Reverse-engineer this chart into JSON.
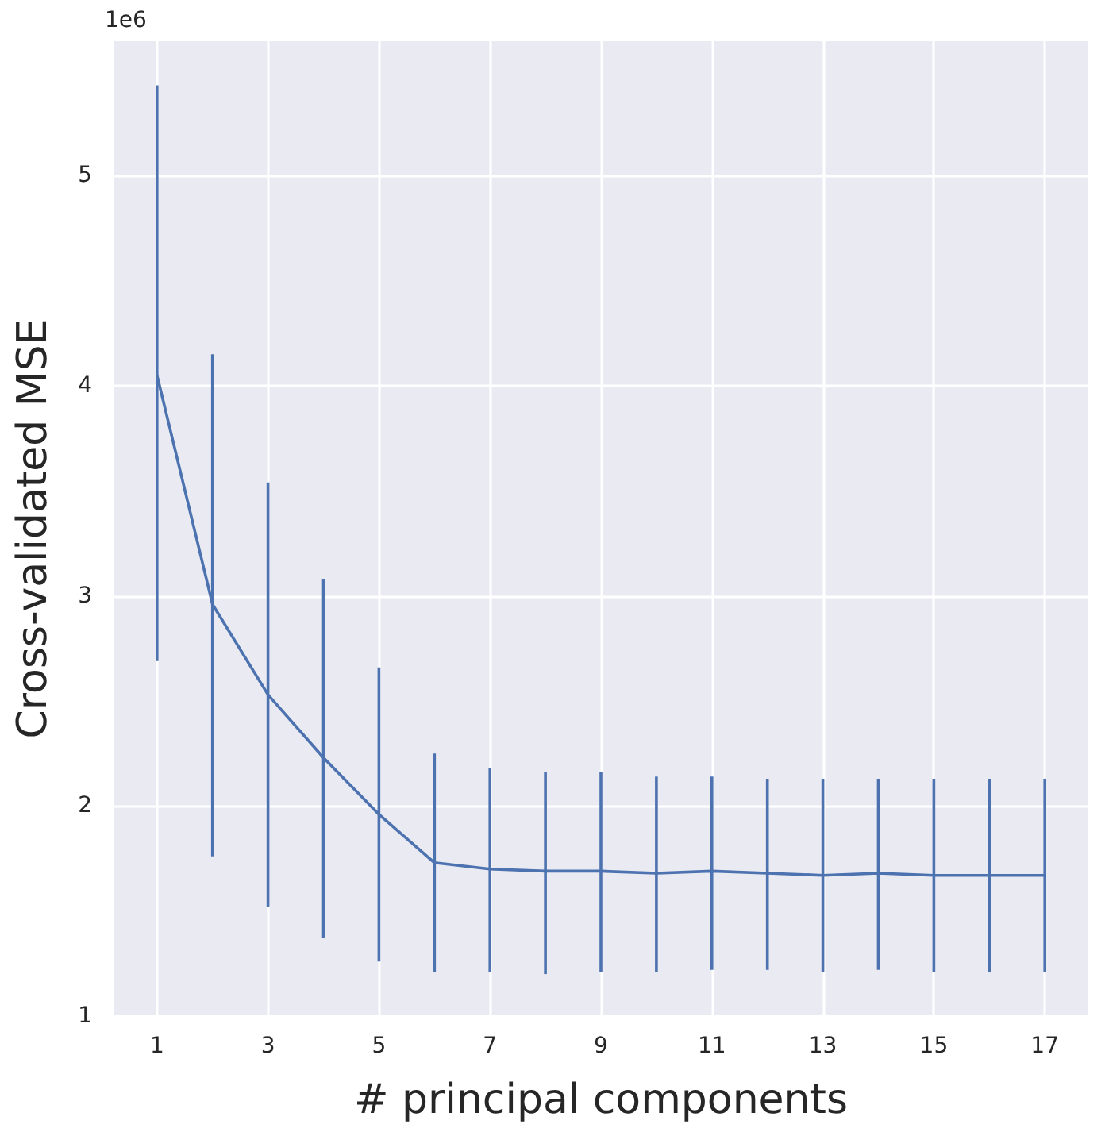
{
  "chart_data": {
    "type": "line",
    "xlabel": "# principal components",
    "ylabel": "Cross-validated MSE",
    "annotations": [
      "1e6"
    ],
    "x": [
      1,
      2,
      3,
      4,
      5,
      6,
      7,
      8,
      9,
      10,
      11,
      12,
      13,
      14,
      15,
      16,
      17
    ],
    "series": [
      {
        "color": "#4c72b0",
        "values": [
          4.05,
          2.96,
          2.53,
          2.23,
          1.96,
          1.73,
          1.7,
          1.69,
          1.69,
          1.68,
          1.69,
          1.68,
          1.67,
          1.68,
          1.67,
          1.67,
          1.67
        ],
        "errors": [
          [
            2.69,
            5.43
          ],
          [
            1.76,
            4.15
          ],
          [
            1.52,
            3.54
          ],
          [
            1.37,
            3.08
          ],
          [
            1.26,
            2.66
          ],
          [
            1.21,
            2.25
          ],
          [
            1.21,
            2.18
          ],
          [
            1.2,
            2.16
          ],
          [
            1.21,
            2.16
          ],
          [
            1.21,
            2.14
          ],
          [
            1.22,
            2.14
          ],
          [
            1.22,
            2.13
          ],
          [
            1.21,
            2.13
          ],
          [
            1.22,
            2.13
          ],
          [
            1.21,
            2.13
          ],
          [
            1.21,
            2.13
          ],
          [
            1.21,
            2.13
          ]
        ]
      }
    ],
    "xlim": [
      0.23,
      17.77
    ],
    "xticks": [
      1,
      3,
      5,
      7,
      9,
      11,
      13,
      15,
      17
    ],
    "ylim": [
      1,
      5.64
    ],
    "yticks": [
      1,
      2,
      3,
      4,
      5
    ],
    "grid": true,
    "marker": "none",
    "line_style": "solid"
  }
}
